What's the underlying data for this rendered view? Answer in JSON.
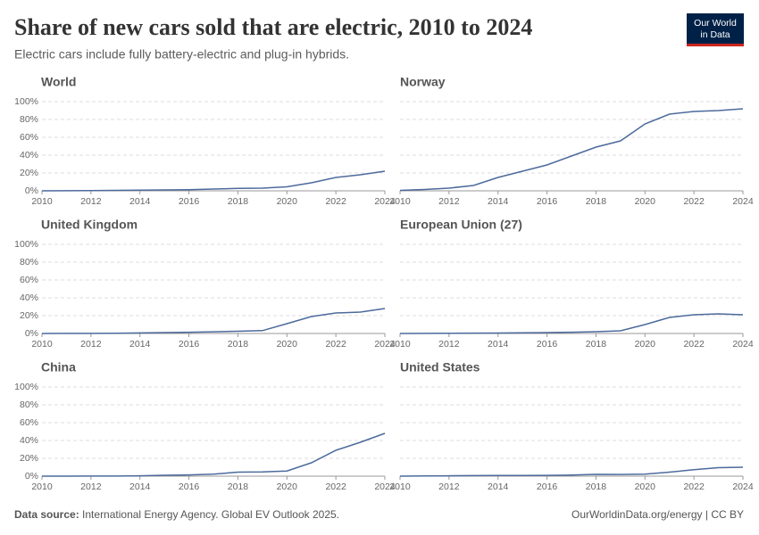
{
  "title": "Share of new cars sold that are electric, 2010 to 2024",
  "subtitle": "Electric cars include fully battery-electric and plug-in hybrids.",
  "logo": [
    "Our World",
    "in Data"
  ],
  "source_label": "Data source:",
  "source": "International Energy Agency. Global EV Outlook 2025.",
  "credit": "OurWorldinData.org/energy | CC BY",
  "chart_data": [
    {
      "type": "line",
      "title": "World",
      "color": "#4c6a9c",
      "grid": true,
      "x": [
        2010,
        2011,
        2012,
        2013,
        2014,
        2015,
        2016,
        2017,
        2018,
        2019,
        2020,
        2021,
        2022,
        2023,
        2024
      ],
      "values": [
        0.01,
        0.1,
        0.3,
        0.5,
        0.7,
        1,
        1.3,
        2,
        2.7,
        3,
        4.5,
        9,
        15,
        18,
        22
      ],
      "xlim": [
        2010,
        2024
      ],
      "xticks": [
        2010,
        2012,
        2014,
        2016,
        2018,
        2020,
        2022,
        2024
      ],
      "ylim": [
        0,
        100
      ],
      "yticks": [
        {
          "value": 0,
          "label": "0%"
        },
        {
          "value": 20,
          "label": "20%"
        },
        {
          "value": 40,
          "label": "40%"
        },
        {
          "value": 60,
          "label": "60%"
        },
        {
          "value": 80,
          "label": "80%"
        },
        {
          "value": 100,
          "label": "100%"
        }
      ]
    },
    {
      "type": "line",
      "title": "Norway",
      "color": "#4c6a9c",
      "grid": true,
      "x": [
        2010,
        2011,
        2012,
        2013,
        2014,
        2015,
        2016,
        2017,
        2018,
        2019,
        2020,
        2021,
        2022,
        2023,
        2024
      ],
      "values": [
        0.5,
        1.5,
        3,
        6,
        15,
        22,
        29,
        39,
        49,
        56,
        75,
        86,
        89,
        90,
        92
      ],
      "xlim": [
        2010,
        2024
      ],
      "xticks": [
        2010,
        2012,
        2014,
        2016,
        2018,
        2020,
        2022,
        2024
      ],
      "ylim": [
        0,
        100
      ],
      "yticks": [
        0,
        20,
        40,
        60,
        80,
        100
      ]
    },
    {
      "type": "line",
      "title": "United Kingdom",
      "color": "#4c6a9c",
      "grid": true,
      "x": [
        2010,
        2011,
        2012,
        2013,
        2014,
        2015,
        2016,
        2017,
        2018,
        2019,
        2020,
        2021,
        2022,
        2023,
        2024
      ],
      "values": [
        0,
        0.1,
        0.1,
        0.2,
        0.6,
        1,
        1.4,
        1.9,
        2.5,
        3.2,
        11,
        19,
        23,
        24,
        28
      ],
      "xlim": [
        2010,
        2024
      ],
      "xticks": [
        2010,
        2012,
        2014,
        2016,
        2018,
        2020,
        2022,
        2024
      ],
      "ylim": [
        0,
        100
      ],
      "yticks": [
        {
          "value": 0,
          "label": "0%"
        },
        {
          "value": 20,
          "label": "20%"
        },
        {
          "value": 40,
          "label": "40%"
        },
        {
          "value": 60,
          "label": "60%"
        },
        {
          "value": 80,
          "label": "80%"
        },
        {
          "value": 100,
          "label": "100%"
        }
      ]
    },
    {
      "type": "line",
      "title": "European Union (27)",
      "color": "#4c6a9c",
      "grid": true,
      "x": [
        2010,
        2011,
        2012,
        2013,
        2014,
        2015,
        2016,
        2017,
        2018,
        2019,
        2020,
        2021,
        2022,
        2023,
        2024
      ],
      "values": [
        0,
        0.1,
        0.2,
        0.4,
        0.5,
        0.8,
        1,
        1.4,
        2,
        3,
        10,
        18,
        21,
        22,
        21
      ],
      "xlim": [
        2010,
        2024
      ],
      "xticks": [
        2010,
        2012,
        2014,
        2016,
        2018,
        2020,
        2022,
        2024
      ],
      "ylim": [
        0,
        100
      ],
      "yticks": [
        0,
        20,
        40,
        60,
        80,
        100
      ]
    },
    {
      "type": "line",
      "title": "China",
      "color": "#4c6a9c",
      "grid": true,
      "x": [
        2010,
        2011,
        2012,
        2013,
        2014,
        2015,
        2016,
        2017,
        2018,
        2019,
        2020,
        2021,
        2022,
        2023,
        2024
      ],
      "values": [
        0,
        0,
        0.1,
        0.1,
        0.4,
        1,
        1.4,
        2.2,
        4.5,
        4.8,
        5.8,
        15,
        29,
        38,
        48
      ],
      "xlim": [
        2010,
        2024
      ],
      "xticks": [
        2010,
        2012,
        2014,
        2016,
        2018,
        2020,
        2022,
        2024
      ],
      "ylim": [
        0,
        100
      ],
      "yticks": [
        {
          "value": 0,
          "label": "0%"
        },
        {
          "value": 20,
          "label": "20%"
        },
        {
          "value": 40,
          "label": "40%"
        },
        {
          "value": 60,
          "label": "60%"
        },
        {
          "value": 80,
          "label": "80%"
        },
        {
          "value": 100,
          "label": "100%"
        }
      ]
    },
    {
      "type": "line",
      "title": "United States",
      "color": "#4c6a9c",
      "grid": true,
      "x": [
        2010,
        2011,
        2012,
        2013,
        2014,
        2015,
        2016,
        2017,
        2018,
        2019,
        2020,
        2021,
        2022,
        2023,
        2024
      ],
      "values": [
        0,
        0.2,
        0.4,
        0.6,
        0.7,
        0.7,
        0.9,
        1.2,
        2,
        1.9,
        2.2,
        4.5,
        7.2,
        9.5,
        10
      ],
      "xlim": [
        2010,
        2024
      ],
      "xticks": [
        2010,
        2012,
        2014,
        2016,
        2018,
        2020,
        2022,
        2024
      ],
      "ylim": [
        0,
        100
      ],
      "yticks": [
        0,
        20,
        40,
        60,
        80,
        100
      ]
    }
  ]
}
